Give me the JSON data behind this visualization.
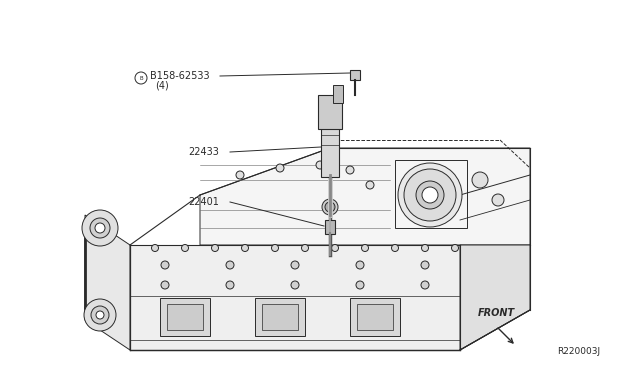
{
  "bg_color": "#ffffff",
  "line_color": "#2a2a2a",
  "text_color": "#2a2a2a",
  "diagram_ref": "R220003J",
  "label_b158": "ⒷB158-62533",
  "label_b158_sub": "(4)",
  "label_22433": "22433",
  "label_22401": "22401",
  "front_label": "FRONT",
  "figsize": [
    6.4,
    3.72
  ],
  "dpi": 100
}
